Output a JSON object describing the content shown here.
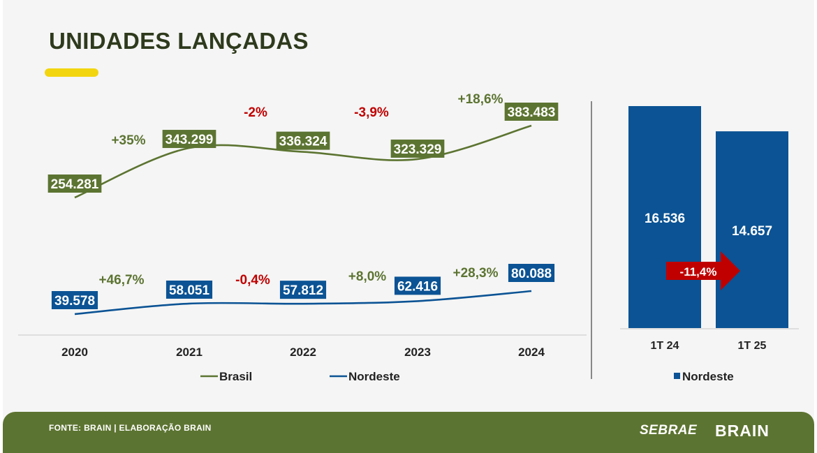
{
  "title": "UNIDADES LANÇADAS",
  "colors": {
    "brasil": "#5c7431",
    "nordeste": "#0b5394",
    "positive": "#5c7431",
    "negative": "#c00000",
    "accent": "#f2d50f"
  },
  "chart_data": [
    {
      "type": "line",
      "x": [
        "2020",
        "2021",
        "2022",
        "2023",
        "2024"
      ],
      "series": [
        {
          "name": "Brasil",
          "values": [
            254281,
            343299,
            336324,
            323329,
            383483
          ],
          "labels": [
            "254.281",
            "343.299",
            "336.324",
            "323.329",
            "383.483"
          ],
          "changes": [
            "+35%",
            "-2%",
            "-3,9%",
            "+18,6%"
          ]
        },
        {
          "name": "Nordeste",
          "values": [
            39578,
            58051,
            57812,
            62416,
            80088
          ],
          "labels": [
            "39.578",
            "58.051",
            "57.812",
            "62.416",
            "80.088"
          ],
          "changes": [
            "+46,7%",
            "-0,4%",
            "+8,0%",
            "+28,3%"
          ]
        }
      ],
      "legend": "bottom"
    },
    {
      "type": "bar",
      "categories": [
        "1T 24",
        "1T 25"
      ],
      "series": [
        {
          "name": "Nordeste",
          "values": [
            16536,
            14657
          ],
          "labels": [
            "16.536",
            "14.657"
          ]
        }
      ],
      "change": "-11,4%",
      "legend": "bottom"
    }
  ],
  "footer": {
    "source": "FONTE: BRAIN | ELABORAÇÃO BRAIN",
    "logo_sebrae": "SEBRAE",
    "logo_brain": "BRAIN"
  }
}
